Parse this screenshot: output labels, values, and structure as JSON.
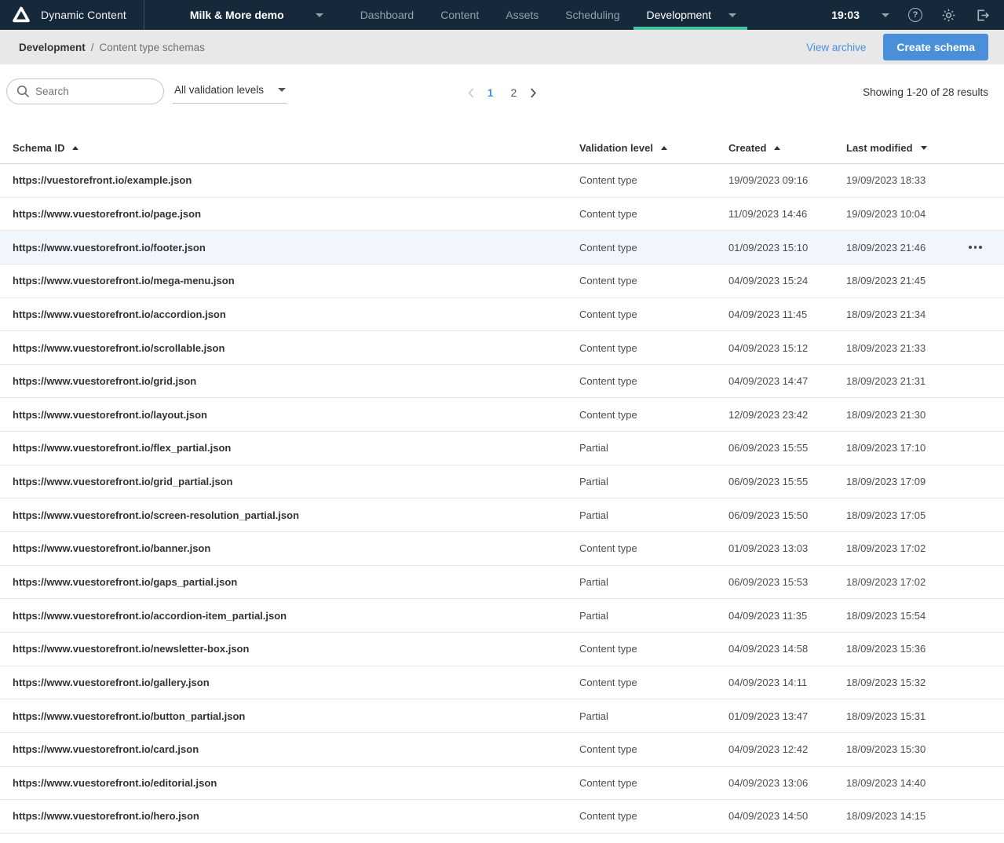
{
  "colors": {
    "topbar_bg": "#16293b",
    "accent_teal": "#44c2a1",
    "accent_blue": "#4a90d9",
    "breadcrumb_bg": "#e8e8e8",
    "row_highlight": "#f0f6fb"
  },
  "topbar": {
    "app_title": "Dynamic Content",
    "hub_selector": "Milk & More demo",
    "nav": [
      {
        "label": "Dashboard",
        "active": false
      },
      {
        "label": "Content",
        "active": false
      },
      {
        "label": "Assets",
        "active": false
      },
      {
        "label": "Scheduling",
        "active": false
      },
      {
        "label": "Development",
        "active": true
      }
    ],
    "time": "19:03"
  },
  "breadcrumb": {
    "section": "Development",
    "separator": "/",
    "page": "Content type schemas"
  },
  "actions": {
    "view_archive": "View archive",
    "create_schema": "Create schema"
  },
  "toolbar": {
    "search_placeholder": "Search",
    "filter_value": "All validation levels",
    "results_text": "Showing 1-20 of 28 results",
    "pagination": {
      "pages": [
        "1",
        "2"
      ],
      "current": "1"
    }
  },
  "table": {
    "headers": [
      {
        "label": "Schema ID",
        "sort": "asc"
      },
      {
        "label": "Validation level",
        "sort": "asc"
      },
      {
        "label": "Created",
        "sort": "asc"
      },
      {
        "label": "Last modified",
        "sort": "desc"
      }
    ],
    "rows": [
      {
        "schema_id": "https://vuestorefront.io/example.json",
        "validation_level": "Content type",
        "created": "19/09/2023 09:16",
        "last_modified": "19/09/2023 18:33",
        "highlighted": false
      },
      {
        "schema_id": "https://www.vuestorefront.io/page.json",
        "validation_level": "Content type",
        "created": "11/09/2023 14:46",
        "last_modified": "19/09/2023 10:04",
        "highlighted": false
      },
      {
        "schema_id": "https://www.vuestorefront.io/footer.json",
        "validation_level": "Content type",
        "created": "01/09/2023 15:10",
        "last_modified": "18/09/2023 21:46",
        "highlighted": true
      },
      {
        "schema_id": "https://www.vuestorefront.io/mega-menu.json",
        "validation_level": "Content type",
        "created": "04/09/2023 15:24",
        "last_modified": "18/09/2023 21:45",
        "highlighted": false
      },
      {
        "schema_id": "https://www.vuestorefront.io/accordion.json",
        "validation_level": "Content type",
        "created": "04/09/2023 11:45",
        "last_modified": "18/09/2023 21:34",
        "highlighted": false
      },
      {
        "schema_id": "https://www.vuestorefront.io/scrollable.json",
        "validation_level": "Content type",
        "created": "04/09/2023 15:12",
        "last_modified": "18/09/2023 21:33",
        "highlighted": false
      },
      {
        "schema_id": "https://www.vuestorefront.io/grid.json",
        "validation_level": "Content type",
        "created": "04/09/2023 14:47",
        "last_modified": "18/09/2023 21:31",
        "highlighted": false
      },
      {
        "schema_id": "https://www.vuestorefront.io/layout.json",
        "validation_level": "Content type",
        "created": "12/09/2023 23:42",
        "last_modified": "18/09/2023 21:30",
        "highlighted": false
      },
      {
        "schema_id": "https://www.vuestorefront.io/flex_partial.json",
        "validation_level": "Partial",
        "created": "06/09/2023 15:55",
        "last_modified": "18/09/2023 17:10",
        "highlighted": false
      },
      {
        "schema_id": "https://www.vuestorefront.io/grid_partial.json",
        "validation_level": "Partial",
        "created": "06/09/2023 15:55",
        "last_modified": "18/09/2023 17:09",
        "highlighted": false
      },
      {
        "schema_id": "https://www.vuestorefront.io/screen-resolution_partial.json",
        "validation_level": "Partial",
        "created": "06/09/2023 15:50",
        "last_modified": "18/09/2023 17:05",
        "highlighted": false
      },
      {
        "schema_id": "https://www.vuestorefront.io/banner.json",
        "validation_level": "Content type",
        "created": "01/09/2023 13:03",
        "last_modified": "18/09/2023 17:02",
        "highlighted": false
      },
      {
        "schema_id": "https://www.vuestorefront.io/gaps_partial.json",
        "validation_level": "Partial",
        "created": "06/09/2023 15:53",
        "last_modified": "18/09/2023 17:02",
        "highlighted": false
      },
      {
        "schema_id": "https://www.vuestorefront.io/accordion-item_partial.json",
        "validation_level": "Partial",
        "created": "04/09/2023 11:35",
        "last_modified": "18/09/2023 15:54",
        "highlighted": false
      },
      {
        "schema_id": "https://www.vuestorefront.io/newsletter-box.json",
        "validation_level": "Content type",
        "created": "04/09/2023 14:58",
        "last_modified": "18/09/2023 15:36",
        "highlighted": false
      },
      {
        "schema_id": "https://www.vuestorefront.io/gallery.json",
        "validation_level": "Content type",
        "created": "04/09/2023 14:11",
        "last_modified": "18/09/2023 15:32",
        "highlighted": false
      },
      {
        "schema_id": "https://www.vuestorefront.io/button_partial.json",
        "validation_level": "Partial",
        "created": "01/09/2023 13:47",
        "last_modified": "18/09/2023 15:31",
        "highlighted": false
      },
      {
        "schema_id": "https://www.vuestorefront.io/card.json",
        "validation_level": "Content type",
        "created": "04/09/2023 12:42",
        "last_modified": "18/09/2023 15:30",
        "highlighted": false
      },
      {
        "schema_id": "https://www.vuestorefront.io/editorial.json",
        "validation_level": "Content type",
        "created": "04/09/2023 13:06",
        "last_modified": "18/09/2023 14:40",
        "highlighted": false
      },
      {
        "schema_id": "https://www.vuestorefront.io/hero.json",
        "validation_level": "Content type",
        "created": "04/09/2023 14:50",
        "last_modified": "18/09/2023 14:15",
        "highlighted": false
      }
    ]
  }
}
